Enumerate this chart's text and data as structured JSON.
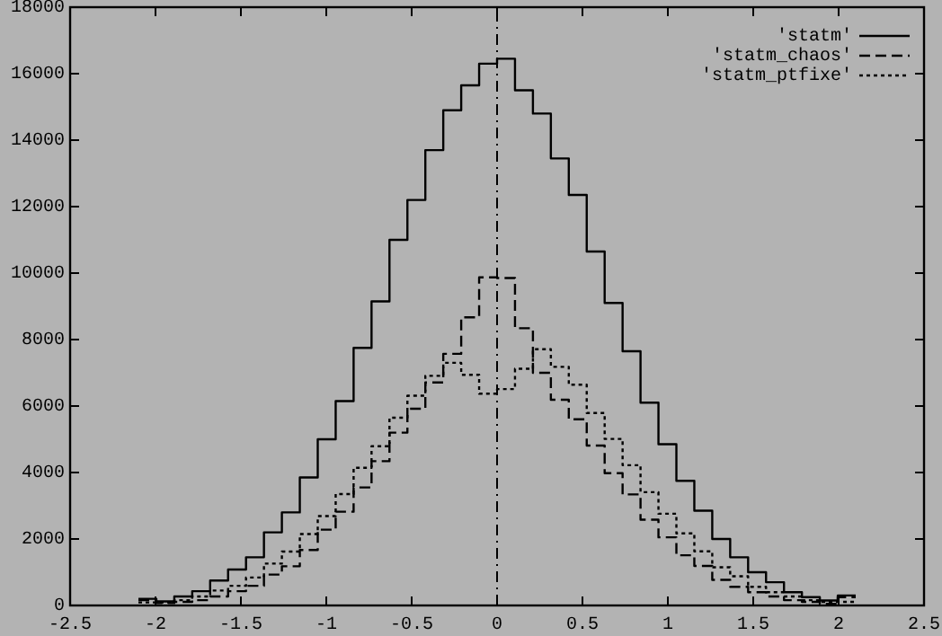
{
  "chart_data": {
    "type": "step",
    "x": [
      -2.1,
      -1.995,
      -1.89,
      -1.785,
      -1.68,
      -1.575,
      -1.47,
      -1.365,
      -1.26,
      -1.155,
      -1.05,
      -0.945,
      -0.84,
      -0.735,
      -0.63,
      -0.525,
      -0.42,
      -0.315,
      -0.21,
      -0.105,
      0,
      0.105,
      0.21,
      0.315,
      0.42,
      0.525,
      0.63,
      0.735,
      0.84,
      0.945,
      1.05,
      1.155,
      1.26,
      1.365,
      1.47,
      1.575,
      1.68,
      1.785,
      1.89,
      1.995,
      2.1
    ],
    "series": [
      {
        "name": "'statm'",
        "color": "#000000",
        "line_style": "solid",
        "values": [
          200,
          120,
          270,
          430,
          750,
          1080,
          1450,
          2200,
          2800,
          3850,
          5000,
          6150,
          7750,
          9150,
          11000,
          12200,
          13700,
          14900,
          15650,
          16300,
          16450,
          15500,
          14800,
          13450,
          12350,
          10650,
          9100,
          7650,
          6100,
          4850,
          3750,
          2850,
          2000,
          1450,
          1000,
          700,
          400,
          250,
          150,
          300,
          300
        ]
      },
      {
        "name": "'statm_chaos'",
        "color": "#000000",
        "line_style": "dashed",
        "values": [
          160,
          70,
          110,
          160,
          270,
          430,
          590,
          930,
          1180,
          1670,
          2280,
          2820,
          3550,
          4340,
          5200,
          5920,
          6710,
          7570,
          8670,
          9870,
          9850,
          8340,
          7000,
          6190,
          5600,
          4810,
          3980,
          3340,
          2580,
          2050,
          1510,
          1190,
          770,
          560,
          400,
          270,
          160,
          110,
          50,
          250,
          250
        ]
      },
      {
        "name": "'statm_ptfixe'",
        "color": "#000000",
        "line_style": "dotted",
        "values": [
          90,
          90,
          160,
          270,
          450,
          590,
          840,
          1260,
          1620,
          2150,
          2690,
          3350,
          4140,
          4790,
          5650,
          6310,
          6910,
          7300,
          6940,
          6370,
          6510,
          7120,
          7710,
          7180,
          6640,
          5790,
          5010,
          4220,
          3410,
          2760,
          2170,
          1630,
          1150,
          880,
          560,
          400,
          270,
          160,
          110,
          110,
          110
        ]
      }
    ],
    "xlim": [
      -2.5,
      2.5
    ],
    "xticks": [
      -2.5,
      -2,
      -1.5,
      -1,
      -0.5,
      0,
      0.5,
      1,
      1.5,
      2,
      2.5
    ],
    "ylim": [
      0,
      18000
    ],
    "yticks": [
      0,
      2000,
      4000,
      6000,
      8000,
      10000,
      12000,
      14000,
      16000,
      18000
    ],
    "ref_lines": [
      {
        "axis": "x",
        "value": 0,
        "line_style": "dashdot"
      }
    ],
    "grid": false,
    "legend": "top right"
  }
}
